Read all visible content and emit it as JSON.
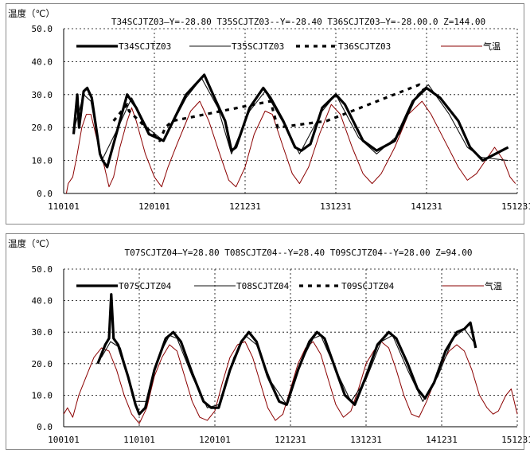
{
  "chart_data": [
    {
      "type": "line",
      "ylabel": "温度（℃）",
      "title": "T34SCJTZ03—Y=-28.80 T35SCJTZ03--Y=-28.40 T36SCJTZ03—Y=-28.00.0 Z=144.00",
      "ylim": [
        0,
        50
      ],
      "y_ticks": [
        "0.0",
        "10.0",
        "20.0",
        "30.0",
        "40.0",
        "50.0"
      ],
      "x_ticks": [
        "110101",
        "120101",
        "121231",
        "131231",
        "141231",
        "151231"
      ],
      "x_range": [
        "2011-01-01",
        "2015-12-31"
      ],
      "grid": true,
      "legend_position": "top",
      "series": [
        {
          "name": "T34SCJTZ03",
          "style": "thick-black",
          "points": [
            [
              0.11,
              18
            ],
            [
              0.15,
              30
            ],
            [
              0.17,
              20
            ],
            [
              0.22,
              31
            ],
            [
              0.26,
              32
            ],
            [
              0.31,
              29
            ],
            [
              0.4,
              12
            ],
            [
              0.43,
              10
            ],
            [
              0.48,
              8
            ],
            [
              0.58,
              18
            ],
            [
              0.7,
              30
            ],
            [
              0.8,
              26
            ],
            [
              0.94,
              18
            ],
            [
              1.1,
              16
            ],
            [
              1.35,
              30
            ],
            [
              1.55,
              36
            ],
            [
              1.68,
              28
            ],
            [
              1.78,
              22
            ],
            [
              1.85,
              13
            ],
            [
              1.9,
              14
            ],
            [
              1.95,
              18
            ],
            [
              2.05,
              26
            ],
            [
              2.2,
              32
            ],
            [
              2.28,
              29
            ],
            [
              2.42,
              22
            ],
            [
              2.55,
              14
            ],
            [
              2.62,
              13
            ],
            [
              2.72,
              15
            ],
            [
              2.85,
              26
            ],
            [
              3.0,
              30
            ],
            [
              3.1,
              27
            ],
            [
              3.3,
              16
            ],
            [
              3.45,
              13
            ],
            [
              3.65,
              16
            ],
            [
              3.85,
              28
            ],
            [
              4.0,
              32
            ],
            [
              4.15,
              29
            ],
            [
              4.35,
              22
            ],
            [
              4.48,
              14
            ],
            [
              4.55,
              12
            ],
            [
              4.62,
              10
            ],
            [
              4.9,
              14
            ]
          ]
        },
        {
          "name": "T35SCJTZ03",
          "style": "thin-black",
          "points": [
            [
              0.12,
              20
            ],
            [
              0.22,
              30
            ],
            [
              0.3,
              28
            ],
            [
              0.42,
              10
            ],
            [
              0.6,
              20
            ],
            [
              0.75,
              29
            ],
            [
              0.92,
              20
            ],
            [
              1.1,
              16
            ],
            [
              1.35,
              29
            ],
            [
              1.52,
              35
            ],
            [
              1.7,
              26
            ],
            [
              1.85,
              12
            ],
            [
              2.05,
              25
            ],
            [
              2.22,
              31
            ],
            [
              2.45,
              20
            ],
            [
              2.6,
              12
            ],
            [
              2.85,
              25
            ],
            [
              3.0,
              30
            ],
            [
              3.25,
              17
            ],
            [
              3.45,
              12
            ],
            [
              3.7,
              18
            ],
            [
              3.9,
              30
            ],
            [
              4.02,
              33
            ],
            [
              4.25,
              24
            ],
            [
              4.45,
              14
            ],
            [
              4.6,
              11
            ],
            [
              4.9,
              10
            ]
          ]
        },
        {
          "name": "T36SCJTZ03",
          "style": "dashed-black",
          "points": [
            [
              0.55,
              22
            ],
            [
              0.7,
              27
            ],
            [
              0.72,
              25
            ],
            [
              1.06,
              16
            ],
            [
              1.12,
              20
            ],
            [
              1.2,
              22
            ],
            [
              2.28,
              28
            ],
            [
              2.36,
              20
            ],
            [
              2.9,
              22
            ],
            [
              3.92,
              33
            ],
            [
              3.98,
              31
            ]
          ]
        },
        {
          "name": "气温",
          "style": "thin-darkred",
          "points": [
            [
              0.03,
              0
            ],
            [
              0.05,
              3
            ],
            [
              0.1,
              5
            ],
            [
              0.15,
              12
            ],
            [
              0.2,
              20
            ],
            [
              0.25,
              24
            ],
            [
              0.3,
              24
            ],
            [
              0.38,
              15
            ],
            [
              0.45,
              8
            ],
            [
              0.5,
              2
            ],
            [
              0.55,
              5
            ],
            [
              0.62,
              14
            ],
            [
              0.7,
              22
            ],
            [
              0.75,
              26
            ],
            [
              0.8,
              22
            ],
            [
              0.9,
              12
            ],
            [
              1.0,
              5
            ],
            [
              1.08,
              2
            ],
            [
              1.15,
              8
            ],
            [
              1.25,
              15
            ],
            [
              1.4,
              25
            ],
            [
              1.5,
              28
            ],
            [
              1.6,
              22
            ],
            [
              1.72,
              12
            ],
            [
              1.82,
              4
            ],
            [
              1.9,
              2
            ],
            [
              2.0,
              8
            ],
            [
              2.1,
              18
            ],
            [
              2.22,
              25
            ],
            [
              2.3,
              24
            ],
            [
              2.42,
              14
            ],
            [
              2.52,
              6
            ],
            [
              2.6,
              3
            ],
            [
              2.7,
              8
            ],
            [
              2.82,
              18
            ],
            [
              2.95,
              27
            ],
            [
              3.05,
              24
            ],
            [
              3.18,
              14
            ],
            [
              3.3,
              6
            ],
            [
              3.4,
              3
            ],
            [
              3.5,
              6
            ],
            [
              3.65,
              14
            ],
            [
              3.8,
              24
            ],
            [
              3.95,
              28
            ],
            [
              4.05,
              24
            ],
            [
              4.2,
              16
            ],
            [
              4.35,
              8
            ],
            [
              4.45,
              4
            ],
            [
              4.55,
              6
            ],
            [
              4.65,
              10
            ],
            [
              4.75,
              14
            ],
            [
              4.85,
              10
            ],
            [
              4.92,
              5
            ],
            [
              4.98,
              3
            ]
          ]
        }
      ]
    },
    {
      "type": "line",
      "ylabel": "温度（℃）",
      "title": "T07SCJTZ04—Y=28.80 T08SCJTZ04--Y=28.40 T09SCJTZ04--Y=28.00 Z=94.00",
      "ylim": [
        0,
        50
      ],
      "y_ticks": [
        "0.0",
        "10.0",
        "20.0",
        "30.0",
        "40.0",
        "50.0"
      ],
      "x_ticks": [
        "100101",
        "110101",
        "120101",
        "121231",
        "131231",
        "141231",
        "151231"
      ],
      "x_range": [
        "2010-01-01",
        "2015-12-31"
      ],
      "grid": true,
      "legend_position": "top",
      "series": [
        {
          "name": "T07SCJTZ04",
          "style": "thick-black",
          "points": [
            [
              0.45,
              20
            ],
            [
              0.55,
              26
            ],
            [
              0.6,
              28
            ],
            [
              0.63,
              42
            ],
            [
              0.66,
              28
            ],
            [
              0.72,
              26
            ],
            [
              0.85,
              16
            ],
            [
              0.95,
              7
            ],
            [
              1.0,
              4
            ],
            [
              1.08,
              6
            ],
            [
              1.2,
              18
            ],
            [
              1.35,
              28
            ],
            [
              1.45,
              30
            ],
            [
              1.55,
              27
            ],
            [
              1.7,
              17
            ],
            [
              1.85,
              8
            ],
            [
              1.95,
              6
            ],
            [
              2.05,
              6
            ],
            [
              2.2,
              18
            ],
            [
              2.35,
              27
            ],
            [
              2.45,
              30
            ],
            [
              2.55,
              27
            ],
            [
              2.7,
              16
            ],
            [
              2.85,
              8
            ],
            [
              2.95,
              7
            ],
            [
              3.1,
              18
            ],
            [
              3.25,
              27
            ],
            [
              3.35,
              30
            ],
            [
              3.45,
              28
            ],
            [
              3.6,
              18
            ],
            [
              3.72,
              10
            ],
            [
              3.85,
              7
            ],
            [
              4.0,
              16
            ],
            [
              4.15,
              26
            ],
            [
              4.3,
              30
            ],
            [
              4.4,
              28
            ],
            [
              4.55,
              20
            ],
            [
              4.68,
              12
            ],
            [
              4.78,
              9
            ],
            [
              4.9,
              14
            ],
            [
              5.05,
              24
            ],
            [
              5.2,
              30
            ],
            [
              5.3,
              31
            ],
            [
              5.38,
              33
            ],
            [
              5.45,
              25
            ]
          ]
        },
        {
          "name": "T08SCJTZ04",
          "style": "thin-black",
          "points": [
            [
              0.5,
              22
            ],
            [
              0.62,
              27
            ],
            [
              0.75,
              25
            ],
            [
              0.95,
              8
            ],
            [
              1.1,
              8
            ],
            [
              1.25,
              22
            ],
            [
              1.4,
              29
            ],
            [
              1.5,
              28
            ],
            [
              1.7,
              16
            ],
            [
              1.9,
              6
            ],
            [
              2.05,
              7
            ],
            [
              2.25,
              22
            ],
            [
              2.4,
              29
            ],
            [
              2.55,
              26
            ],
            [
              2.75,
              14
            ],
            [
              2.95,
              7
            ],
            [
              3.15,
              21
            ],
            [
              3.3,
              28
            ],
            [
              3.4,
              29
            ],
            [
              3.6,
              18
            ],
            [
              3.8,
              8
            ],
            [
              4.0,
              15
            ],
            [
              4.2,
              27
            ],
            [
              4.35,
              29
            ],
            [
              4.55,
              18
            ],
            [
              4.75,
              8
            ],
            [
              4.95,
              16
            ],
            [
              5.15,
              28
            ],
            [
              5.3,
              31
            ],
            [
              5.42,
              27
            ]
          ]
        },
        {
          "name": "T09SCJTZ04",
          "style": "dashed-black",
          "points": []
        },
        {
          "name": "气温",
          "style": "thin-darkred",
          "points": [
            [
              0.0,
              4
            ],
            [
              0.05,
              6
            ],
            [
              0.12,
              3
            ],
            [
              0.2,
              10
            ],
            [
              0.3,
              16
            ],
            [
              0.4,
              22
            ],
            [
              0.5,
              25
            ],
            [
              0.6,
              24
            ],
            [
              0.7,
              18
            ],
            [
              0.8,
              10
            ],
            [
              0.9,
              4
            ],
            [
              1.0,
              1
            ],
            [
              1.1,
              6
            ],
            [
              1.2,
              16
            ],
            [
              1.3,
              22
            ],
            [
              1.4,
              26
            ],
            [
              1.5,
              24
            ],
            [
              1.6,
              16
            ],
            [
              1.7,
              8
            ],
            [
              1.8,
              3
            ],
            [
              1.9,
              2
            ],
            [
              2.0,
              5
            ],
            [
              2.1,
              14
            ],
            [
              2.2,
              22
            ],
            [
              2.3,
              26
            ],
            [
              2.4,
              27
            ],
            [
              2.5,
              22
            ],
            [
              2.6,
              14
            ],
            [
              2.7,
              6
            ],
            [
              2.8,
              2
            ],
            [
              2.9,
              4
            ],
            [
              3.0,
              12
            ],
            [
              3.1,
              20
            ],
            [
              3.2,
              25
            ],
            [
              3.3,
              27
            ],
            [
              3.4,
              23
            ],
            [
              3.5,
              15
            ],
            [
              3.6,
              7
            ],
            [
              3.7,
              3
            ],
            [
              3.8,
              5
            ],
            [
              3.9,
              12
            ],
            [
              4.0,
              20
            ],
            [
              4.1,
              24
            ],
            [
              4.2,
              27
            ],
            [
              4.3,
              25
            ],
            [
              4.4,
              18
            ],
            [
              4.5,
              10
            ],
            [
              4.6,
              4
            ],
            [
              4.7,
              3
            ],
            [
              4.8,
              8
            ],
            [
              4.9,
              14
            ],
            [
              5.0,
              20
            ],
            [
              5.1,
              24
            ],
            [
              5.2,
              26
            ],
            [
              5.3,
              24
            ],
            [
              5.4,
              18
            ],
            [
              5.5,
              10
            ],
            [
              5.6,
              6
            ],
            [
              5.68,
              4
            ],
            [
              5.75,
              5
            ],
            [
              5.85,
              10
            ],
            [
              5.92,
              12
            ],
            [
              6.0,
              4
            ]
          ]
        }
      ]
    }
  ]
}
